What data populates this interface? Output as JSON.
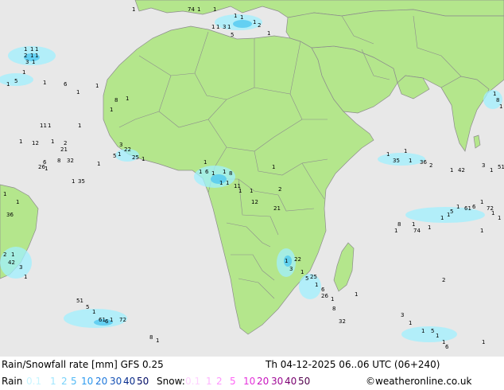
{
  "map": {
    "colors": {
      "ocean": "#e8e8e8",
      "land": "#b4e68c",
      "border": "#8c8c8c",
      "rain_label": "#000000",
      "rain_light": "#a0f0ff",
      "rain_mid": "#50c8f0"
    },
    "precip_labels": [
      "1",
      "2",
      "3",
      "5",
      "6",
      "8",
      "11",
      "12",
      "21",
      "22",
      "25",
      "26",
      "32",
      "35",
      "36",
      "42",
      "51",
      "61",
      "72",
      "74"
    ]
  },
  "header": {
    "title": "Rain/Snowfall rate [mm] GFS 0.25",
    "datetime": "Th 04-12-2025 06..06 UTC (06+240)"
  },
  "legend": {
    "rain_label": "Rain",
    "rain_values": [
      {
        "text": "0.1",
        "color": "#c8f5ff"
      },
      {
        "text": "1",
        "color": "#a0e6ff"
      },
      {
        "text": "2",
        "color": "#78d2fa"
      },
      {
        "text": "5",
        "color": "#50b9f5"
      },
      {
        "text": "10",
        "color": "#2d9bf0"
      },
      {
        "text": "20",
        "color": "#1e78dc"
      },
      {
        "text": "30",
        "color": "#1450b4"
      },
      {
        "text": "40",
        "color": "#0a2d8c"
      },
      {
        "text": "50",
        "color": "#000a64"
      }
    ],
    "snow_label": "Snow:",
    "snow_values": [
      {
        "text": "0.1",
        "color": "#ffd2ff"
      },
      {
        "text": "1",
        "color": "#ffb4ff"
      },
      {
        "text": "2",
        "color": "#ff96ff"
      },
      {
        "text": "5",
        "color": "#ff64f5"
      },
      {
        "text": "10",
        "color": "#e632dc"
      },
      {
        "text": "20",
        "color": "#c814be"
      },
      {
        "text": "30",
        "color": "#a00a96"
      },
      {
        "text": "40",
        "color": "#78006e"
      },
      {
        "text": "50",
        "color": "#50004b"
      }
    ],
    "credit": "©weatheronline.co.uk"
  }
}
